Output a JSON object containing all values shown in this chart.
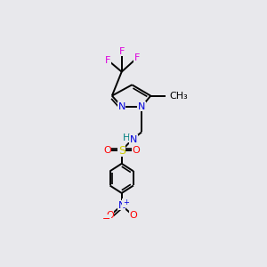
{
  "bg_color": "#e8e8ec",
  "colors": {
    "C": "#000000",
    "F": "#dd00dd",
    "N": "#0000dd",
    "O": "#ff0000",
    "S": "#cccc00",
    "H": "#008080"
  },
  "lw": 1.4
}
